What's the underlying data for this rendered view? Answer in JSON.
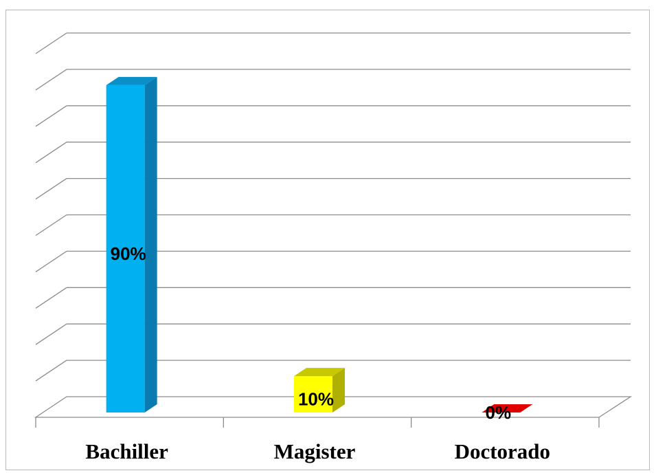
{
  "chart_data": {
    "type": "bar",
    "title": "",
    "xlabel": "",
    "ylabel": "",
    "categories": [
      "Bachiller",
      "Magister",
      "Doctorado"
    ],
    "values": [
      90,
      10,
      0
    ],
    "labels": [
      "90%",
      "10%",
      "0%"
    ],
    "colors": [
      "#00b0f0",
      "#ffff00",
      "#e00000"
    ],
    "side_colors": [
      "#0a7bb0",
      "#b0b000",
      "#9a0000"
    ],
    "top_colors": [
      "#0a8fc8",
      "#c8c800",
      "#c00000"
    ],
    "ylim": [
      0,
      100
    ],
    "grid": true,
    "style": "3d-column"
  }
}
